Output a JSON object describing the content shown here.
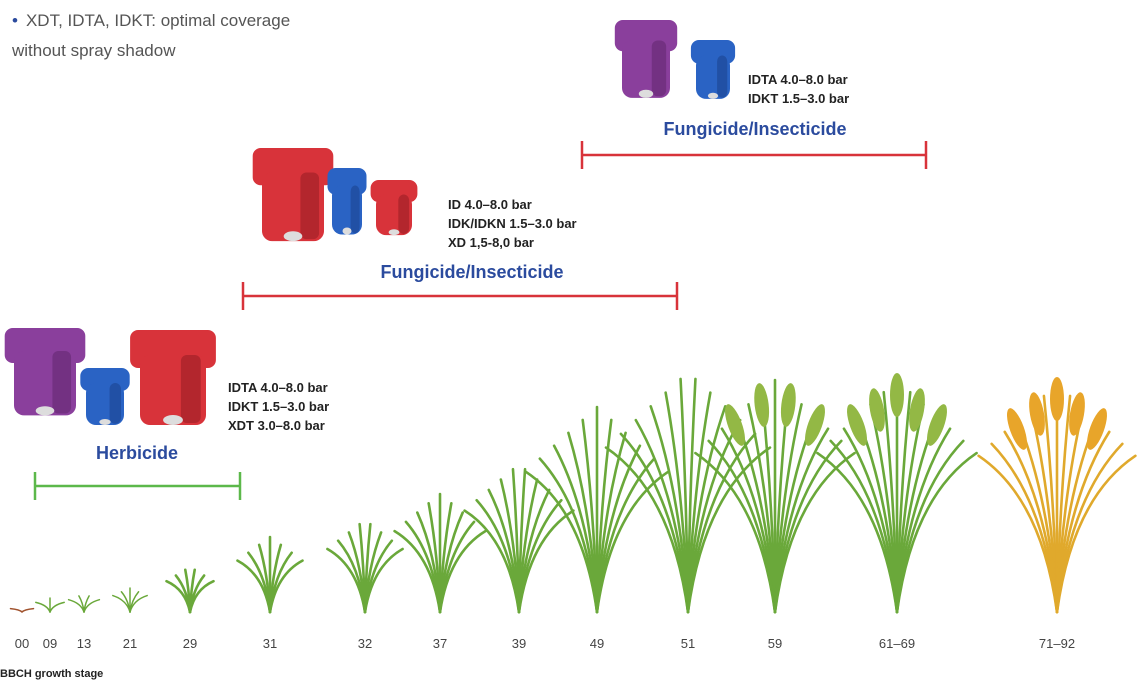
{
  "bullets": [
    "XDT, IDTA, IDKT: optimal coverage without spray shadow"
  ],
  "groups": [
    {
      "pressures": [
        "IDTA 4.0–8.0 bar",
        "IDKT 1.5–3.0 bar",
        "XDT 3.0–8.0 bar"
      ],
      "application": "Herbicide"
    },
    {
      "pressures": [
        "ID 4.0–8.0 bar",
        "IDK/IDKN 1.5–3.0 bar",
        "XD 1,5-8,0 bar"
      ],
      "application": "Fungicide/Insecticide"
    },
    {
      "pressures": [
        "IDTA 4.0–8.0 bar",
        "IDKT 1.5–3.0 bar"
      ],
      "application": "Fungicide/Insecticide"
    }
  ],
  "stages": [
    "00",
    "09",
    "13",
    "21",
    "29",
    "31",
    "32",
    "37",
    "39",
    "49",
    "51",
    "59",
    "61–69",
    "71–92"
  ],
  "axis_label": "BBCH growth stage"
}
